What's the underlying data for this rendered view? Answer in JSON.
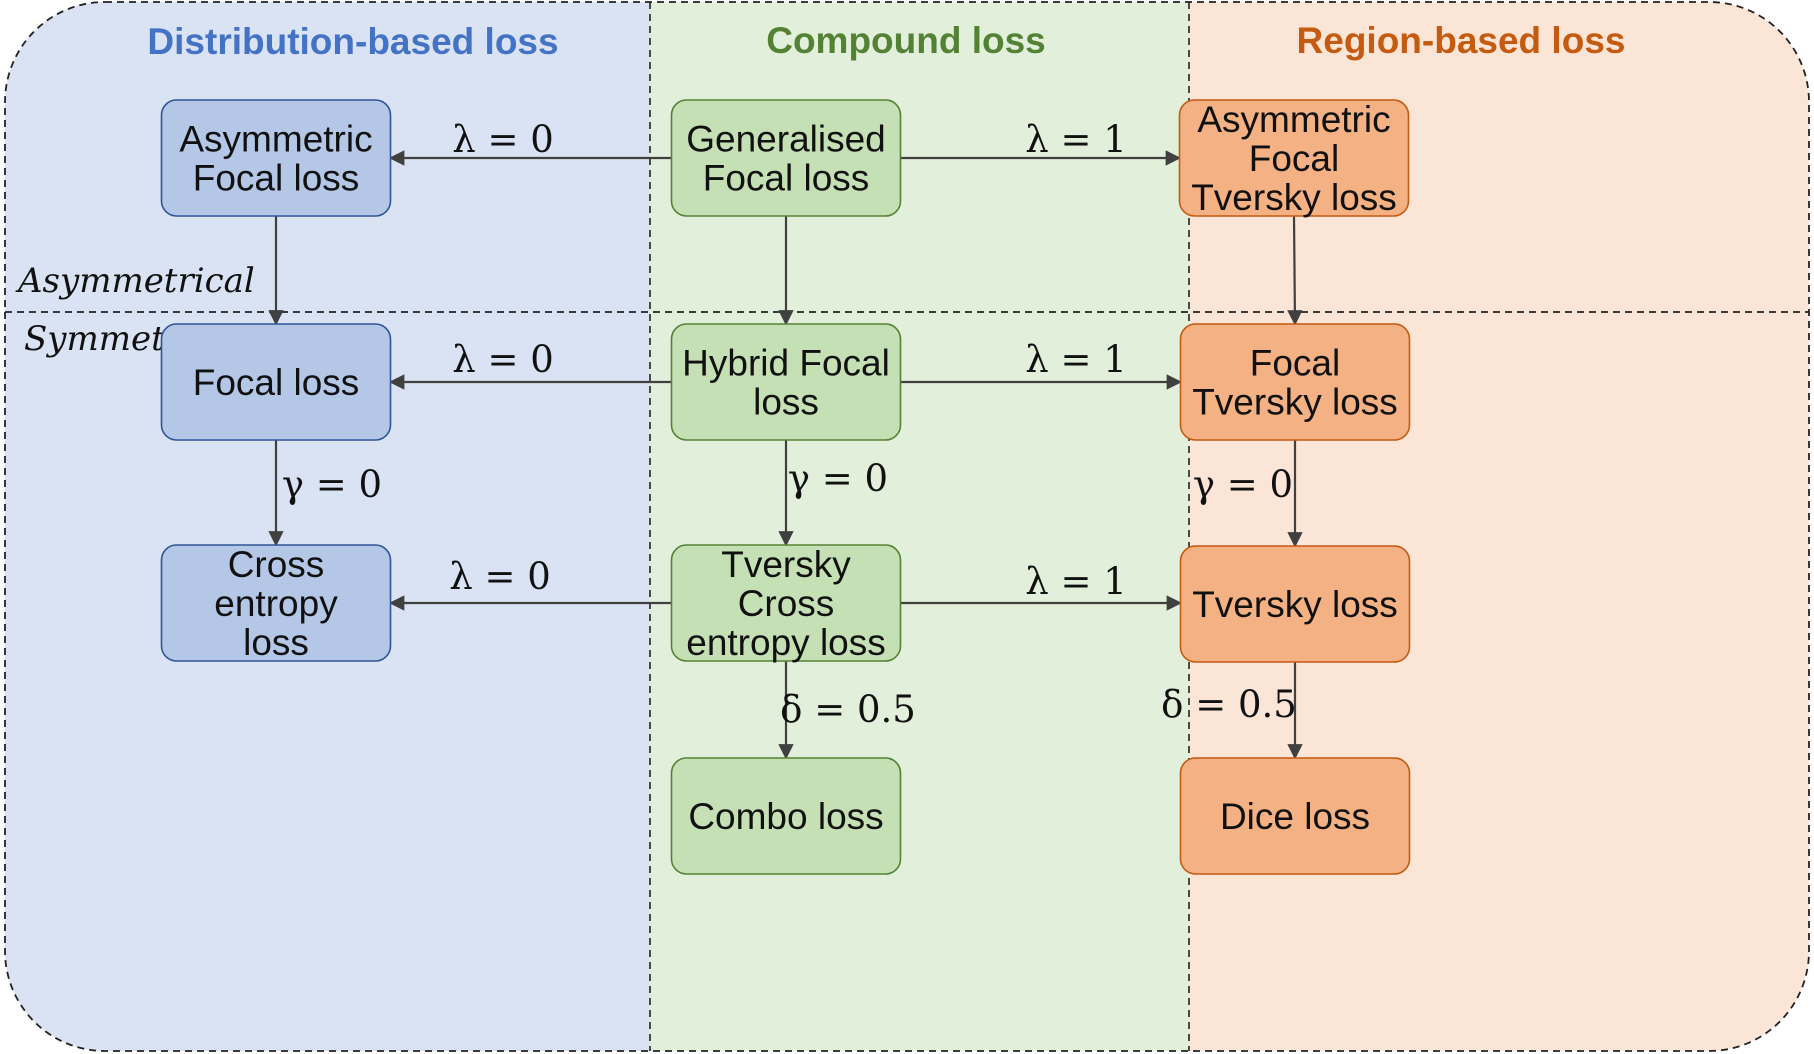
{
  "columns": [
    {
      "id": "distribution",
      "title": "Distribution-based loss",
      "title_color": "#4472c4",
      "bg": "#dae3f3"
    },
    {
      "id": "compound",
      "title": "Compound loss",
      "title_color": "#548235",
      "bg": "#e2efda"
    },
    {
      "id": "region",
      "title": "Region-based loss",
      "title_color": "#c55a11",
      "bg": "#fbe5d6"
    }
  ],
  "rows": {
    "asymmetrical": "Asymmetrical",
    "symmetrical": "Symmetrical"
  },
  "styles": {
    "distribution": {
      "fill": "#b4c7e7",
      "stroke": "#2f5597"
    },
    "compound": {
      "fill": "#c5e0b4",
      "stroke": "#548235"
    },
    "region": {
      "fill": "#f4b183",
      "stroke": "#c55a11"
    },
    "edge_color": "#404040"
  },
  "nodes": [
    {
      "id": "asym_focal",
      "col": "distribution",
      "lines": [
        "Asymmetric",
        "Focal loss"
      ]
    },
    {
      "id": "gen_focal",
      "col": "compound",
      "lines": [
        "Generalised",
        "Focal loss"
      ]
    },
    {
      "id": "asym_focal_tversky",
      "col": "region",
      "lines": [
        "Asymmetric",
        "Focal",
        "Tversky loss"
      ]
    },
    {
      "id": "focal",
      "col": "distribution",
      "lines": [
        "Focal loss"
      ]
    },
    {
      "id": "hybrid_focal",
      "col": "compound",
      "lines": [
        "Hybrid Focal",
        "loss"
      ]
    },
    {
      "id": "focal_tversky",
      "col": "region",
      "lines": [
        "Focal",
        "Tversky loss"
      ]
    },
    {
      "id": "cross_entropy",
      "col": "distribution",
      "lines": [
        "Cross",
        "entropy",
        "loss"
      ]
    },
    {
      "id": "tversky_ce",
      "col": "compound",
      "lines": [
        "Tversky",
        "Cross",
        "entropy loss"
      ]
    },
    {
      "id": "tversky",
      "col": "region",
      "lines": [
        "Tversky loss"
      ]
    },
    {
      "id": "combo",
      "col": "compound",
      "lines": [
        "Combo loss"
      ]
    },
    {
      "id": "dice",
      "col": "region",
      "lines": [
        "Dice loss"
      ]
    }
  ],
  "edges": [
    {
      "from": "gen_focal",
      "to": "asym_focal",
      "label": "λ = 0"
    },
    {
      "from": "gen_focal",
      "to": "asym_focal_tversky",
      "label": "λ = 1"
    },
    {
      "from": "asym_focal",
      "to": "focal",
      "label": ""
    },
    {
      "from": "gen_focal",
      "to": "hybrid_focal",
      "label": ""
    },
    {
      "from": "asym_focal_tversky",
      "to": "focal_tversky",
      "label": ""
    },
    {
      "from": "hybrid_focal",
      "to": "focal",
      "label": "λ = 0"
    },
    {
      "from": "hybrid_focal",
      "to": "focal_tversky",
      "label": "λ = 1"
    },
    {
      "from": "focal",
      "to": "cross_entropy",
      "label": "γ = 0"
    },
    {
      "from": "hybrid_focal",
      "to": "tversky_ce",
      "label": "γ = 0"
    },
    {
      "from": "focal_tversky",
      "to": "tversky",
      "label": "γ = 0"
    },
    {
      "from": "tversky_ce",
      "to": "cross_entropy",
      "label": "λ = 0"
    },
    {
      "from": "tversky_ce",
      "to": "tversky",
      "label": "λ = 1"
    },
    {
      "from": "tversky_ce",
      "to": "combo",
      "label": "δ = 0.5"
    },
    {
      "from": "tversky",
      "to": "dice",
      "label": "δ = 0.5"
    }
  ]
}
